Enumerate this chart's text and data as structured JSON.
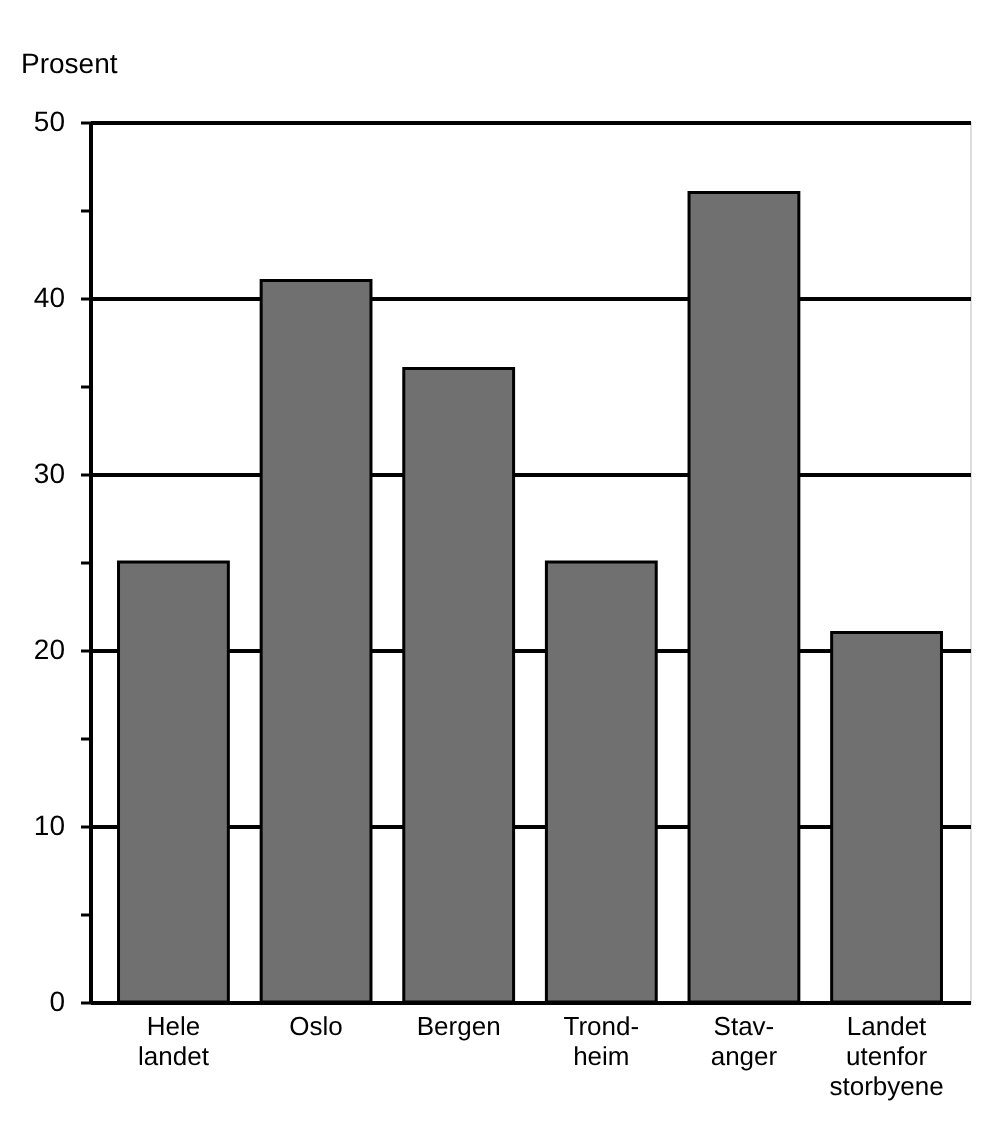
{
  "chart_data": {
    "type": "bar",
    "ylabel": "Prosent",
    "categories": [
      "Hele\nlandet",
      "Oslo",
      "Bergen",
      "Trond-\nheim",
      "Stav-\nanger",
      "Landet\nutenfor\nstorbyene"
    ],
    "values": [
      25,
      41,
      36,
      25,
      46,
      21
    ],
    "color": "#707070",
    "ylim": [
      0,
      50
    ],
    "yticks": [
      0,
      {
        "value": 5,
        "label": null
      },
      10,
      {
        "value": 15,
        "label": null
      },
      20,
      {
        "value": 25,
        "label": null
      },
      30,
      {
        "value": 35,
        "label": null
      },
      40,
      {
        "value": 45,
        "label": null
      },
      50
    ],
    "grid": "y"
  }
}
